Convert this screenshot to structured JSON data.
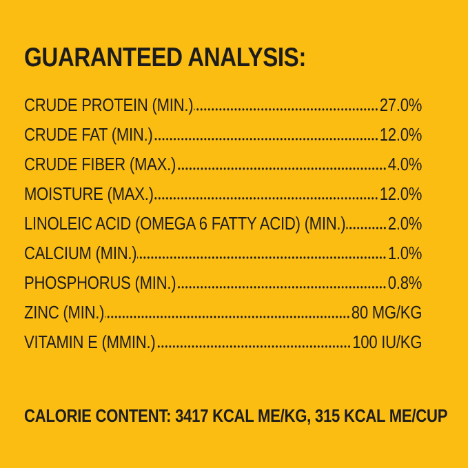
{
  "colors": {
    "background": "#FCBD13",
    "text": "#1C1C1C"
  },
  "heading": "GUARANTEED ANALYSIS:",
  "analysis_rows": [
    {
      "label": "CRUDE PROTEIN (MIN.)",
      "value": "27.0%"
    },
    {
      "label": "CRUDE FAT (MIN.)",
      "value": "12.0%"
    },
    {
      "label": "CRUDE FIBER (MAX.)",
      "value": "4.0%"
    },
    {
      "label": "MOISTURE (MAX.)",
      "value": "12.0%"
    },
    {
      "label": "LINOLEIC ACID (OMEGA 6 FATTY ACID) (MIN.)",
      "value": "2.0%"
    },
    {
      "label": "CALCIUM (MIN.)",
      "value": "1.0%"
    },
    {
      "label": "PHOSPHORUS (MIN.)",
      "value": "0.8%"
    },
    {
      "label": "ZINC (MIN.)",
      "value": "80 MG/KG"
    },
    {
      "label": "VITAMIN E (MMIN.)",
      "value": "100 IU/KG"
    }
  ],
  "calorie_line": "CALORIE CONTENT: 3417 KCAL ME/KG, 315 KCAL ME/CUP"
}
